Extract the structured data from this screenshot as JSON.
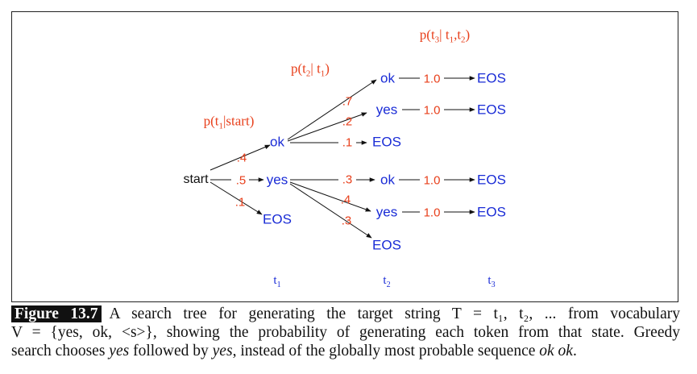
{
  "headers": {
    "h1": {
      "p": "p(t",
      "s1": "1",
      "rest": "|start)"
    },
    "h2": {
      "p": "p(t",
      "s1": "2",
      "mid": "| t",
      "s2": "1",
      "end": ")"
    },
    "h3": {
      "p": "p(t",
      "s1": "3",
      "mid": "| t",
      "s2": "1",
      "comma": ",t",
      "s3": "2",
      "end": ")"
    }
  },
  "nodes": {
    "start": "start",
    "ok1": "ok",
    "yes1": "yes",
    "eos1": "EOS",
    "ok_ok": "ok",
    "ok_yes": "yes",
    "ok_eos": "EOS",
    "yes_ok": "ok",
    "yes_yes": "yes",
    "yes_eos": "EOS",
    "eos_a": "EOS",
    "eos_b": "EOS",
    "eos_c": "EOS",
    "eos_d": "EOS"
  },
  "probs": {
    "p_ok": ".4",
    "p_yes": ".5",
    "p_eos": ".1",
    "ok_ok": ".7",
    "ok_yes": ".2",
    "ok_eos": ".1",
    "yes_ok": ".3",
    "yes_yes": ".4",
    "yes_eos": ".3",
    "f1": "1.0",
    "f2": "1.0",
    "f3": "1.0",
    "f4": "1.0"
  },
  "time_labels": {
    "t": "t",
    "s1": "1",
    "s2": "2",
    "s3": "3"
  },
  "colors": {
    "node": "#1a2cd6",
    "prob": "#e8401c",
    "edge": "#111111"
  },
  "caption": {
    "figure_label": "Figure 13.7",
    "line1_text": "A search tree for generating the target string T = t₁, t₂, ... from vocabulary",
    "line2_text": "V = {yes, ok, <s>}, showing the probability of generating each token from that state. Greedy",
    "line3_a": "search chooses ",
    "line3_b": "yes",
    "line3_c": " followed by ",
    "line3_d": "yes",
    "line3_e": ", instead of the globally most probable sequence ",
    "line3_f": "ok ok",
    "line3_g": "."
  }
}
